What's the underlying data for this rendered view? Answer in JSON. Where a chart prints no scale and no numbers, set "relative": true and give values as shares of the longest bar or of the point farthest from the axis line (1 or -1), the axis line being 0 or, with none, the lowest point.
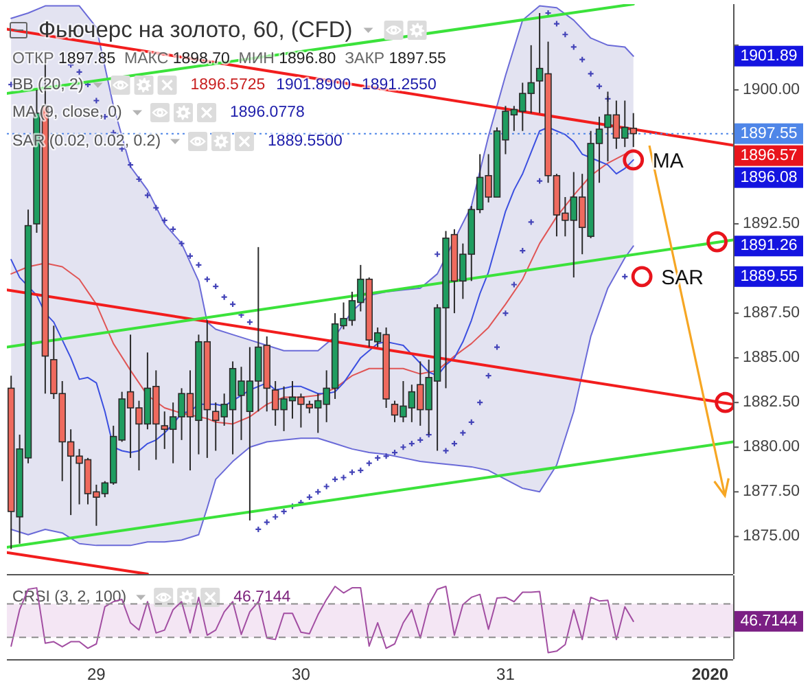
{
  "chart_data": [
    {
      "type": "candlestick",
      "title": "Фьючерс на золото, 60, (CFD)",
      "x": [
        "2019-12-28T14:00",
        "2019-12-28T15:00",
        "2019-12-28T16:00",
        "2019-12-28T17:00",
        "2019-12-28T18:00",
        "2019-12-28T19:00",
        "2019-12-28T20:00",
        "2019-12-28T21:00",
        "2019-12-28T22:00",
        "2019-12-28T23:00",
        "2019-12-29T00:00",
        "2019-12-29T01:00",
        "2019-12-29T02:00",
        "2019-12-29T03:00",
        "2019-12-29T04:00",
        "2019-12-29T05:00",
        "2019-12-29T06:00",
        "2019-12-29T07:00",
        "2019-12-29T08:00",
        "2019-12-29T09:00",
        "2019-12-29T10:00",
        "2019-12-29T11:00",
        "2019-12-29T12:00",
        "2019-12-29T13:00",
        "2019-12-29T14:00",
        "2019-12-29T15:00",
        "2019-12-29T16:00",
        "2019-12-29T17:00",
        "2019-12-29T18:00",
        "2019-12-29T19:00",
        "2019-12-29T20:00",
        "2019-12-29T21:00",
        "2019-12-29T22:00",
        "2019-12-29T23:00",
        "2019-12-30T00:00",
        "2019-12-30T01:00",
        "2019-12-30T02:00",
        "2019-12-30T03:00",
        "2019-12-30T04:00",
        "2019-12-30T05:00",
        "2019-12-30T06:00",
        "2019-12-30T07:00",
        "2019-12-30T08:00",
        "2019-12-30T09:00",
        "2019-12-30T10:00",
        "2019-12-30T11:00",
        "2019-12-30T12:00",
        "2019-12-30T13:00",
        "2019-12-30T14:00",
        "2019-12-30T15:00",
        "2019-12-30T16:00",
        "2019-12-30T17:00",
        "2019-12-30T18:00",
        "2019-12-30T19:00",
        "2019-12-30T20:00",
        "2019-12-30T21:00",
        "2019-12-30T22:00",
        "2019-12-30T23:00",
        "2019-12-31T00:00",
        "2019-12-31T01:00",
        "2019-12-31T02:00",
        "2019-12-31T03:00",
        "2019-12-31T04:00",
        "2019-12-31T05:00",
        "2019-12-31T06:00",
        "2019-12-31T07:00",
        "2019-12-31T08:00",
        "2019-12-31T09:00",
        "2019-12-31T10:00",
        "2019-12-31T11:00",
        "2019-12-31T12:00",
        "2019-12-31T13:00",
        "2019-12-31T14:00",
        "2019-12-31T15:00"
      ],
      "ohlc": [
        [
          1883.3,
          1884.0,
          1874.3,
          1876.4
        ],
        [
          1876.1,
          1880.7,
          1874.6,
          1879.9
        ],
        [
          1879.4,
          1893.3,
          1879.1,
          1892.4
        ],
        [
          1892.5,
          1900.0,
          1892.0,
          1898.7
        ],
        [
          1899.1,
          1901.7,
          1883.0,
          1885.1
        ],
        [
          1884.9,
          1886.8,
          1882.7,
          1883.0
        ],
        [
          1883.0,
          1883.7,
          1878.1,
          1880.3
        ],
        [
          1880.3,
          1881.0,
          1876.2,
          1879.5
        ],
        [
          1879.5,
          1879.9,
          1876.8,
          1879.1
        ],
        [
          1879.3,
          1879.4,
          1876.8,
          1877.4
        ],
        [
          1877.5,
          1877.9,
          1875.6,
          1877.2
        ],
        [
          1877.4,
          1878.1,
          1877.2,
          1878.0
        ],
        [
          1878.0,
          1881.2,
          1877.9,
          1880.6
        ],
        [
          1880.4,
          1883.1,
          1880.3,
          1882.7
        ],
        [
          1883.1,
          1886.3,
          1879.4,
          1882.2
        ],
        [
          1882.2,
          1882.6,
          1878.7,
          1881.3
        ],
        [
          1881.3,
          1885.3,
          1881.0,
          1883.3
        ],
        [
          1883.4,
          1884.3,
          1879.3,
          1881.3
        ],
        [
          1881.2,
          1882.0,
          1879.9,
          1881.0
        ],
        [
          1881.0,
          1882.5,
          1879.1,
          1881.7
        ],
        [
          1881.7,
          1883.3,
          1880.4,
          1883.0
        ],
        [
          1883.0,
          1884.3,
          1878.7,
          1881.7
        ],
        [
          1881.5,
          1886.3,
          1879.6,
          1885.9
        ],
        [
          1885.9,
          1887.1,
          1879.4,
          1882.1
        ],
        [
          1882.0,
          1882.5,
          1879.8,
          1881.5
        ],
        [
          1881.7,
          1883.0,
          1881.2,
          1882.4
        ],
        [
          1882.1,
          1884.8,
          1879.6,
          1884.4
        ],
        [
          1882.9,
          1884.5,
          1880.4,
          1883.7
        ],
        [
          1882.0,
          1885.6,
          1875.9,
          1883.7
        ],
        [
          1883.7,
          1891.2,
          1882.0,
          1885.6
        ],
        [
          1885.7,
          1886.2,
          1882.0,
          1883.3
        ],
        [
          1883.2,
          1883.7,
          1881.2,
          1882.1
        ],
        [
          1882.1,
          1883.4,
          1880.9,
          1882.7
        ],
        [
          1882.6,
          1883.7,
          1881.6,
          1882.8
        ],
        [
          1882.8,
          1883.0,
          1881.1,
          1882.4
        ],
        [
          1882.4,
          1882.6,
          1881.9,
          1882.2
        ],
        [
          1882.2,
          1883.0,
          1880.8,
          1882.6
        ],
        [
          1882.4,
          1884.3,
          1881.4,
          1883.3
        ],
        [
          1883.3,
          1887.5,
          1882.7,
          1886.9
        ],
        [
          1886.8,
          1888.1,
          1886.6,
          1887.2
        ],
        [
          1887.1,
          1888.7,
          1886.8,
          1888.2
        ],
        [
          1888.1,
          1890.2,
          1887.6,
          1889.4
        ],
        [
          1889.4,
          1889.5,
          1885.6,
          1886.0
        ],
        [
          1885.9,
          1886.7,
          1885.6,
          1886.4
        ],
        [
          1886.3,
          1886.7,
          1882.2,
          1882.7
        ],
        [
          1882.4,
          1882.6,
          1881.4,
          1881.8
        ],
        [
          1881.7,
          1883.7,
          1881.4,
          1882.3
        ],
        [
          1882.2,
          1883.5,
          1881.4,
          1883.1
        ],
        [
          1883.5,
          1884.8,
          1881.2,
          1882.1
        ],
        [
          1882.1,
          1884.9,
          1880.7,
          1883.9
        ],
        [
          1883.7,
          1888.0,
          1879.8,
          1887.8
        ],
        [
          1887.8,
          1892.1,
          1883.3,
          1891.7
        ],
        [
          1891.9,
          1892.2,
          1887.5,
          1889.3
        ],
        [
          1889.3,
          1891.4,
          1888.3,
          1890.8
        ],
        [
          1890.8,
          1893.5,
          1889.3,
          1893.3
        ],
        [
          1893.3,
          1896.4,
          1893.1,
          1895.1
        ],
        [
          1895.2,
          1896.4,
          1893.7,
          1894.0
        ],
        [
          1894.0,
          1897.9,
          1894.0,
          1897.7
        ],
        [
          1897.2,
          1899.1,
          1896.4,
          1898.8
        ],
        [
          1898.6,
          1899.1,
          1897.7,
          1898.9
        ],
        [
          1898.8,
          1900.4,
          1897.7,
          1899.8
        ],
        [
          1899.8,
          1902.5,
          1898.7,
          1900.4
        ],
        [
          1900.5,
          1904.3,
          1898.7,
          1901.2
        ],
        [
          1900.9,
          1902.7,
          1894.8,
          1895.2
        ],
        [
          1895.2,
          1895.3,
          1891.8,
          1893.0
        ],
        [
          1893.1,
          1894.0,
          1891.8,
          1892.7
        ],
        [
          1892.7,
          1895.4,
          1889.5,
          1894.0
        ],
        [
          1894.0,
          1895.3,
          1890.8,
          1892.3
        ],
        [
          1891.8,
          1897.7,
          1891.7,
          1897.0
        ],
        [
          1897.0,
          1898.5,
          1894.8,
          1897.8
        ],
        [
          1897.9,
          1899.9,
          1896.0,
          1898.6
        ],
        [
          1898.6,
          1899.4,
          1896.7,
          1897.3
        ],
        [
          1897.3,
          1899.4,
          1896.8,
          1897.9
        ],
        [
          1897.85,
          1898.7,
          1896.8,
          1897.55
        ]
      ],
      "colors": [
        "#ef6a5e",
        "#1f9d60",
        "#1f9d60",
        "#1f9d60",
        "#ef6a5e",
        "#ef6a5e",
        "#ef6a5e",
        "#ef6a5e",
        "#ef6a5e",
        "#ef6a5e",
        "#ef6a5e",
        "#1f9d60",
        "#1f9d60",
        "#1f9d60",
        "#ef6a5e",
        "#ef6a5e",
        "#1f9d60",
        "#ef6a5e",
        "#ef6a5e",
        "#1f9d60",
        "#1f9d60",
        "#ef6a5e",
        "#1f9d60",
        "#ef6a5e",
        "#ef6a5e",
        "#1f9d60",
        "#1f9d60",
        "#1f9d60",
        "#1f9d60",
        "#1f9d60",
        "#ef6a5e",
        "#ef6a5e",
        "#1f9d60",
        "#1f9d60",
        "#ef6a5e",
        "#ef6a5e",
        "#1f9d60",
        "#1f9d60",
        "#1f9d60",
        "#1f9d60",
        "#1f9d60",
        "#1f9d60",
        "#ef6a5e",
        "#1f9d60",
        "#ef6a5e",
        "#ef6a5e",
        "#1f9d60",
        "#1f9d60",
        "#ef6a5e",
        "#1f9d60",
        "#1f9d60",
        "#1f9d60",
        "#ef6a5e",
        "#1f9d60",
        "#1f9d60",
        "#1f9d60",
        "#ef6a5e",
        "#1f9d60",
        "#1f9d60",
        "#1f9d60",
        "#1f9d60",
        "#1f9d60",
        "#1f9d60",
        "#ef6a5e",
        "#ef6a5e",
        "#ef6a5e",
        "#1f9d60",
        "#ef6a5e",
        "#1f9d60",
        "#1f9d60",
        "#1f9d60",
        "#ef6a5e",
        "#1f9d60",
        "#ef6a5e"
      ],
      "xlim": [
        "2019-12-28T13:30",
        "2020-01-01T02:42"
      ],
      "ylim": [
        1872.9,
        1904.8
      ],
      "yticks": [
        {
          "value": 1875,
          "label": "1875.00"
        },
        {
          "value": 1877.5,
          "label": "1877.50"
        },
        {
          "value": 1880,
          "label": "1880.00"
        },
        {
          "value": 1882.5,
          "label": "1882.50"
        },
        {
          "value": 1885,
          "label": "1885.00"
        },
        {
          "value": 1887.5,
          "label": "1887.50"
        },
        {
          "value": 1890,
          "label": null
        },
        {
          "value": 1892.5,
          "label": "1892.50"
        },
        {
          "value": 1895,
          "label": null
        },
        {
          "value": 1897.5,
          "label": null
        },
        {
          "value": 1900,
          "label": "1900.00"
        },
        {
          "value": 1902.5,
          "label": null
        }
      ],
      "tick_labels": "y",
      "series": [
        {
          "type": "line",
          "color": "#e05555",
          "x": [
            "2019-12-28T14:00",
            "2019-12-28T16:00",
            "2019-12-28T18:00",
            "2019-12-28T20:00",
            "2019-12-28T22:00",
            "2019-12-29T00:00",
            "2019-12-29T02:00",
            "2019-12-29T04:00",
            "2019-12-29T06:00",
            "2019-12-29T08:00",
            "2019-12-29T10:00",
            "2019-12-29T12:00",
            "2019-12-29T13:00",
            "2019-12-29T14:00",
            "2019-12-29T16:00",
            "2019-12-29T18:00",
            "2019-12-29T20:00",
            "2019-12-29T22:00",
            "2019-12-30T00:00",
            "2019-12-30T02:00",
            "2019-12-30T04:00",
            "2019-12-30T06:00",
            "2019-12-30T08:00",
            "2019-12-30T10:00",
            "2019-12-30T12:00",
            "2019-12-30T14:00",
            "2019-12-30T16:00",
            "2019-12-30T18:00",
            "2019-12-30T20:00",
            "2019-12-30T22:00",
            "2019-12-31T00:00",
            "2019-12-31T02:00",
            "2019-12-31T04:00",
            "2019-12-31T06:00",
            "2019-12-31T08:00",
            "2019-12-31T10:00",
            "2019-12-31T12:00",
            "2019-12-31T14:00",
            "2019-12-31T15:00"
          ],
          "values": [
            1889.7,
            1890.1,
            1890.3,
            1890.1,
            1889.4,
            1888.0,
            1885.8,
            1884.3,
            1882.9,
            1882.2,
            1881.9,
            1881.7,
            1881.6,
            1881.4,
            1881.3,
            1881.7,
            1882.4,
            1882.8,
            1882.8,
            1882.9,
            1883.3,
            1884.0,
            1884.4,
            1884.4,
            1884.4,
            1884.1,
            1884.3,
            1885.1,
            1885.8,
            1886.7,
            1888.0,
            1889.4,
            1891.4,
            1892.9,
            1894.1,
            1895.2,
            1895.9,
            1896.4,
            1896.57
          ],
          "lower": [
            1875.4,
            1875.1,
            1875.4,
            1875.2,
            1874.6,
            1874.5,
            1874.5,
            1874.5,
            1874.7,
            1874.7,
            1874.8,
            1875.1,
            1876.6,
            1878.2,
            1879.2,
            1880.0,
            1880.3,
            1880.4,
            1880.5,
            1880.5,
            1880.2,
            1879.9,
            1879.7,
            1879.6,
            1879.4,
            1879.2,
            1879.1,
            1879.0,
            1878.9,
            1878.7,
            1878.2,
            1877.7,
            1877.5,
            1879.0,
            1882.0,
            1886.2,
            1888.9,
            1890.6,
            1891.26
          ],
          "upper": [
            1904.0,
            1904.3,
            1904.7,
            1904.7,
            1904.7,
            1903.5,
            1899.1,
            1895.7,
            1894.4,
            1892.5,
            1891.4,
            1889.3,
            1887.0,
            1886.6,
            1886.3,
            1886.0,
            1885.7,
            1885.4,
            1885.4,
            1885.4,
            1886.2,
            1887.6,
            1888.5,
            1888.7,
            1888.8,
            1888.9,
            1889.7,
            1891.6,
            1893.5,
            1897.4,
            1900.8,
            1903.9,
            1904.7,
            1904.6,
            1903.9,
            1902.9,
            1902.5,
            1902.4,
            1901.89
          ]
        },
        {
          "type": "line",
          "color": "#6a6ad8",
          "x": [
            "2019-12-28T14:00",
            "2019-12-28T16:00",
            "2019-12-28T18:00",
            "2019-12-28T20:00",
            "2019-12-28T22:00",
            "2019-12-29T00:00",
            "2019-12-29T02:00",
            "2019-12-29T04:00",
            "2019-12-29T06:00",
            "2019-12-29T08:00",
            "2019-12-29T10:00",
            "2019-12-29T12:00",
            "2019-12-29T13:00",
            "2019-12-29T14:00",
            "2019-12-29T16:00",
            "2019-12-29T18:00",
            "2019-12-29T20:00",
            "2019-12-29T22:00",
            "2019-12-30T00:00",
            "2019-12-30T02:00",
            "2019-12-30T04:00",
            "2019-12-30T06:00",
            "2019-12-30T08:00",
            "2019-12-30T10:00",
            "2019-12-30T12:00",
            "2019-12-30T14:00",
            "2019-12-30T16:00",
            "2019-12-30T20:00",
            "2019-12-30T22:00",
            "2019-12-31T00:00",
            "2019-12-31T02:00",
            "2019-12-31T04:00",
            "2019-12-31T06:00",
            "2019-12-31T08:00",
            "2019-12-31T10:00",
            "2019-12-31T12:00",
            "2019-12-31T14:00",
            "2019-12-31T15:00"
          ],
          "values": [
            1904.0,
            1904.3,
            1904.7,
            1904.7,
            1904.7,
            1903.5,
            1899.1,
            1895.7,
            1894.4,
            1892.5,
            1891.4,
            1889.3,
            1887.0,
            1886.6,
            1886.3,
            1886.0,
            1885.7,
            1885.4,
            1885.4,
            1885.4,
            1886.2,
            1887.6,
            1888.5,
            1888.7,
            1888.8,
            1888.9,
            1889.7,
            1893.5,
            1897.4,
            1900.8,
            1903.9,
            1904.7,
            1904.6,
            1903.9,
            1902.9,
            1902.5,
            1902.4,
            1901.89
          ]
        },
        {
          "type": "line",
          "color": "#6a6ad8",
          "x": [
            "2019-12-28T14:00",
            "2019-12-28T16:00",
            "2019-12-28T18:00",
            "2019-12-28T20:00",
            "2019-12-28T22:00",
            "2019-12-29T00:00",
            "2019-12-29T02:00",
            "2019-12-29T04:00",
            "2019-12-29T06:00",
            "2019-12-29T08:00",
            "2019-12-29T10:00",
            "2019-12-29T12:00",
            "2019-12-29T13:00",
            "2019-12-29T14:00",
            "2019-12-29T16:00",
            "2019-12-29T18:00",
            "2019-12-29T20:00",
            "2019-12-29T22:00",
            "2019-12-30T00:00",
            "2019-12-30T02:00",
            "2019-12-30T04:00",
            "2019-12-30T06:00",
            "2019-12-30T08:00",
            "2019-12-30T10:00",
            "2019-12-30T12:00",
            "2019-12-30T14:00",
            "2019-12-30T16:00",
            "2019-12-30T18:00",
            "2019-12-30T20:00",
            "2019-12-30T22:00",
            "2019-12-31T00:00",
            "2019-12-31T02:00",
            "2019-12-31T04:00",
            "2019-12-31T06:00",
            "2019-12-31T08:00",
            "2019-12-31T10:00",
            "2019-12-31T12:00",
            "2019-12-31T14:00",
            "2019-12-31T15:00"
          ],
          "values": [
            1875.4,
            1875.1,
            1875.4,
            1875.2,
            1874.6,
            1874.5,
            1874.5,
            1874.5,
            1874.7,
            1874.7,
            1874.8,
            1875.1,
            1876.6,
            1878.2,
            1879.2,
            1880.0,
            1880.3,
            1880.4,
            1880.5,
            1880.5,
            1880.2,
            1879.9,
            1879.7,
            1879.6,
            1879.4,
            1879.2,
            1879.1,
            1879.0,
            1878.9,
            1878.7,
            1878.2,
            1877.7,
            1877.5,
            1879.0,
            1882.0,
            1886.2,
            1888.9,
            1890.6,
            1891.26
          ]
        },
        {
          "type": "line",
          "color": "#3b4fe0",
          "values": [
            1890.5,
            1889.5,
            1889.0,
            1888.5,
            1887.5,
            1887.0,
            1886.0,
            1885.0,
            1883.8,
            1883.9,
            1883.6,
            1882.0,
            1880.0,
            1879.8,
            1879.7,
            1879.8,
            1880.2,
            1880.4,
            1880.8,
            1881.3,
            1881.9,
            1882.0,
            1882.4,
            1882.4,
            1882.4,
            1882.3,
            1882.6,
            1882.9,
            1883.2,
            1883.4,
            1883.6,
            1883.2,
            1883.3,
            1883.4,
            1883.4,
            1883.2,
            1883.0,
            1883.0,
            1883.1,
            1883.6,
            1884.3,
            1885.0,
            1885.4,
            1885.8,
            1885.9,
            1885.8,
            1885.7,
            1885.2,
            1884.7,
            1884.2,
            1884.0,
            1884.6,
            1885.0,
            1885.9,
            1887.1,
            1888.6,
            1889.8,
            1891.5,
            1893.2,
            1894.4,
            1895.3,
            1896.5,
            1897.7,
            1897.9,
            1897.7,
            1897.5,
            1897.1,
            1896.4,
            1896.2,
            1896.0,
            1895.8,
            1895.3,
            1895.6,
            1896.08
          ]
        },
        {
          "type": "scatter",
          "marker": "cross",
          "color": "#4343b8",
          "x": [
            "2019-12-28T14:00",
            "2019-12-28T21:00",
            "2019-12-28T22:00",
            "2019-12-28T23:00",
            "2019-12-29T00:00",
            "2019-12-29T01:00",
            "2019-12-29T02:00",
            "2019-12-29T03:00",
            "2019-12-29T04:00",
            "2019-12-29T05:00",
            "2019-12-29T06:00",
            "2019-12-29T07:00",
            "2019-12-29T08:00",
            "2019-12-29T09:00",
            "2019-12-29T10:00",
            "2019-12-29T11:00",
            "2019-12-29T12:00",
            "2019-12-29T13:00",
            "2019-12-29T14:00",
            "2019-12-29T15:00",
            "2019-12-29T16:00",
            "2019-12-29T17:00",
            "2019-12-29T18:00",
            "2019-12-29T19:00",
            "2019-12-29T20:00",
            "2019-12-29T21:00",
            "2019-12-29T22:00",
            "2019-12-29T23:00",
            "2019-12-30T00:00",
            "2019-12-30T01:00",
            "2019-12-30T02:00",
            "2019-12-30T03:00",
            "2019-12-30T04:00",
            "2019-12-30T05:00",
            "2019-12-30T06:00",
            "2019-12-30T07:00",
            "2019-12-30T08:00",
            "2019-12-30T09:00",
            "2019-12-30T10:00",
            "2019-12-30T11:00",
            "2019-12-30T12:00",
            "2019-12-30T13:00",
            "2019-12-30T14:00",
            "2019-12-30T15:00",
            "2019-12-30T16:00",
            "2019-12-30T17:00",
            "2019-12-30T18:00",
            "2019-12-30T19:00",
            "2019-12-30T20:00",
            "2019-12-30T21:00",
            "2019-12-30T22:00",
            "2019-12-30T23:00",
            "2019-12-31T00:00",
            "2019-12-31T01:00",
            "2019-12-31T02:00",
            "2019-12-31T03:00",
            "2019-12-31T04:00",
            "2019-12-31T05:00",
            "2019-12-31T06:00",
            "2019-12-31T07:00",
            "2019-12-31T08:00",
            "2019-12-31T09:00",
            "2019-12-31T10:00",
            "2019-12-31T11:00",
            "2019-12-31T12:00",
            "2019-12-31T14:00"
          ],
          "values": [
            1900.3,
            1901.4,
            1901.0,
            1900.3,
            1899.4,
            1898.5,
            1897.6,
            1896.7,
            1895.8,
            1895.0,
            1894.1,
            1893.4,
            1892.7,
            1892.2,
            1891.4,
            1890.7,
            1890.2,
            1889.4,
            1889.0,
            1888.4,
            1888.0,
            1887.4,
            1887.0,
            1875.4,
            1875.8,
            1876.1,
            1876.4,
            1876.7,
            1876.9,
            1877.2,
            1877.5,
            1877.8,
            1878.2,
            1878.3,
            1878.6,
            1878.7,
            1879.1,
            1879.4,
            1879.5,
            1879.7,
            1880.0,
            1880.2,
            1880.4,
            1880.7,
            1890.8,
            1879.8,
            1880.2,
            1880.8,
            1881.4,
            1882.5,
            1884.0,
            1885.6,
            1887.5,
            1889.1,
            1891.0,
            1892.6,
            1894.9,
            1904.3,
            1903.7,
            1903.1,
            1902.4,
            1901.7,
            1900.9,
            1900.2,
            1899.5,
            1889.55
          ]
        },
        {
          "type": "line",
          "color": "#f21d1d",
          "x": [
            "2019-12-28T13:30",
            "2020-01-01T02:42"
          ],
          "values": [
            1903.4,
            1896.9
          ]
        },
        {
          "type": "line",
          "color": "#f21d1d",
          "x": [
            "2019-12-28T13:30",
            "2020-01-01T02:42"
          ],
          "values": [
            1888.8,
            1882.4
          ]
        },
        {
          "type": "line",
          "color": "#f21d1d",
          "x": [
            "2019-12-28T13:30",
            "2019-12-29T06:00"
          ],
          "values": [
            1874.1,
            1872.9
          ]
        },
        {
          "type": "line",
          "color": "#3be23b",
          "x": [
            "2019-12-28T13:30",
            "2019-12-31T15:00"
          ],
          "values": [
            1899.8,
            1904.8
          ]
        },
        {
          "type": "line",
          "color": "#3be23b",
          "x": [
            "2019-12-28T13:30",
            "2020-01-01T02:42"
          ],
          "values": [
            1885.6,
            1891.6
          ]
        },
        {
          "type": "line",
          "color": "#3be23b",
          "x": [
            "2019-12-28T13:30",
            "2020-01-01T02:42"
          ],
          "values": [
            1874.4,
            1880.3
          ]
        },
        {
          "type": "scatter",
          "marker": "circle",
          "color": "#e8141c",
          "x": [
            "2020-01-01T00:49",
            "2020-01-01T01:47"
          ],
          "values": [
            1891.5,
            1882.5
          ]
        }
      ],
      "ref_lines": [
        {
          "axis": "y",
          "value": 1897.55,
          "label": "1897.55",
          "color": "#4f86e8",
          "line_style": "dotted"
        }
      ],
      "annotations": [
        "ОТКР 1897.85 МАКС 1898.70 МИН 1896.80 ЗАКР 1897.55",
        "BB (20, 2)",
        "1896.5725",
        "1901.8900",
        "1891.2550",
        "MA (9, close, 0)",
        "1896.0778",
        "SAR (0.02, 0.02, 0.2)",
        "1889.5500",
        {
          "text": "MA",
          "x": "2019-12-31T15:00",
          "y": 1896.08
        },
        {
          "text": "SAR",
          "x": "2019-12-31T16:00",
          "y": 1889.55
        },
        "1901.89",
        "1896.57",
        "1896.08",
        "1891.26",
        "1889.55"
      ]
    },
    {
      "type": "line",
      "relative": true,
      "x": [
        "2019-12-28T14:00",
        "2019-12-28T15:00",
        "2019-12-28T16:00",
        "2019-12-28T17:00",
        "2019-12-28T18:00",
        "2019-12-28T19:00",
        "2019-12-28T20:00",
        "2019-12-28T21:00",
        "2019-12-28T22:00",
        "2019-12-28T23:00",
        "2019-12-29T00:00",
        "2019-12-29T01:00",
        "2019-12-29T02:00",
        "2019-12-29T03:00",
        "2019-12-29T04:00",
        "2019-12-29T05:00",
        "2019-12-29T06:00",
        "2019-12-29T07:00",
        "2019-12-29T08:00",
        "2019-12-29T09:00",
        "2019-12-29T10:00",
        "2019-12-29T11:00",
        "2019-12-29T12:00",
        "2019-12-29T13:00",
        "2019-12-29T14:00",
        "2019-12-29T15:00",
        "2019-12-29T16:00",
        "2019-12-29T17:00",
        "2019-12-29T18:00",
        "2019-12-29T19:00",
        "2019-12-29T20:00",
        "2019-12-29T21:00",
        "2019-12-29T22:00",
        "2019-12-29T23:00",
        "2019-12-30T00:00",
        "2019-12-30T01:00",
        "2019-12-30T02:00",
        "2019-12-30T03:00",
        "2019-12-30T04:00",
        "2019-12-30T05:00",
        "2019-12-30T06:00",
        "2019-12-30T07:00",
        "2019-12-30T08:00",
        "2019-12-30T09:00",
        "2019-12-30T10:00",
        "2019-12-30T11:00",
        "2019-12-30T12:00",
        "2019-12-30T13:00",
        "2019-12-30T14:00",
        "2019-12-30T15:00",
        "2019-12-30T16:00",
        "2019-12-30T17:00",
        "2019-12-30T18:00",
        "2019-12-30T19:00",
        "2019-12-30T20:00",
        "2019-12-30T21:00",
        "2019-12-30T22:00",
        "2019-12-30T23:00",
        "2019-12-31T00:00",
        "2019-12-31T01:00",
        "2019-12-31T02:00",
        "2019-12-31T03:00",
        "2019-12-31T04:00",
        "2019-12-31T05:00",
        "2019-12-31T06:00",
        "2019-12-31T07:00",
        "2019-12-31T08:00",
        "2019-12-31T09:00",
        "2019-12-31T10:00",
        "2019-12-31T11:00",
        "2019-12-31T12:00",
        "2019-12-31T13:00",
        "2019-12-31T14:00",
        "2019-12-31T15:00"
      ],
      "series": [
        {
          "color": "#a24ea2",
          "values": [
            0.18,
            0.68,
            0.96,
            0.98,
            0.22,
            0.24,
            0.17,
            0.24,
            0.24,
            0.15,
            0.21,
            0.72,
            0.79,
            0.82,
            0.5,
            0.4,
            0.79,
            0.36,
            0.4,
            0.68,
            0.79,
            0.36,
            0.85,
            0.33,
            0.4,
            0.65,
            0.79,
            0.34,
            0.65,
            0.79,
            0.29,
            0.27,
            0.63,
            0.63,
            0.37,
            0.35,
            0.61,
            0.82,
            1.0,
            0.91,
            0.98,
            0.98,
            0.18,
            0.5,
            0.15,
            0.21,
            0.5,
            0.68,
            0.29,
            0.75,
            0.96,
            1.0,
            0.33,
            0.75,
            0.85,
            0.89,
            0.41,
            0.84,
            0.85,
            0.79,
            0.92,
            0.92,
            0.93,
            0.09,
            0.11,
            0.2,
            0.68,
            0.27,
            0.85,
            0.8,
            0.81,
            0.27,
            0.72,
            0.52
          ]
        }
      ],
      "xlim": [
        "2019-12-28T13:30",
        "2020-01-01T02:42"
      ],
      "xticks": [
        {
          "value": "2019-12-29",
          "label": "29"
        },
        {
          "value": "2019-12-30",
          "label": "30"
        },
        {
          "value": "2019-12-31",
          "label": "31"
        },
        {
          "value": "2020-01-01",
          "label": "2020"
        }
      ],
      "tick_labels": "x",
      "bands": [
        {
          "axis": "y",
          "from": 0.3,
          "to": 0.76,
          "color": "#f4e6f4"
        }
      ],
      "ref_lines": [
        {
          "axis": "y",
          "value": 0.76,
          "color": "#8c8c8c",
          "line_style": "dashed"
        },
        {
          "axis": "y",
          "value": 0.3,
          "color": "#8c8c8c",
          "line_style": "dashed"
        }
      ],
      "annotations": [
        "CRSI (3, 2, 100)",
        "46.7144",
        "46.7144"
      ]
    }
  ]
}
